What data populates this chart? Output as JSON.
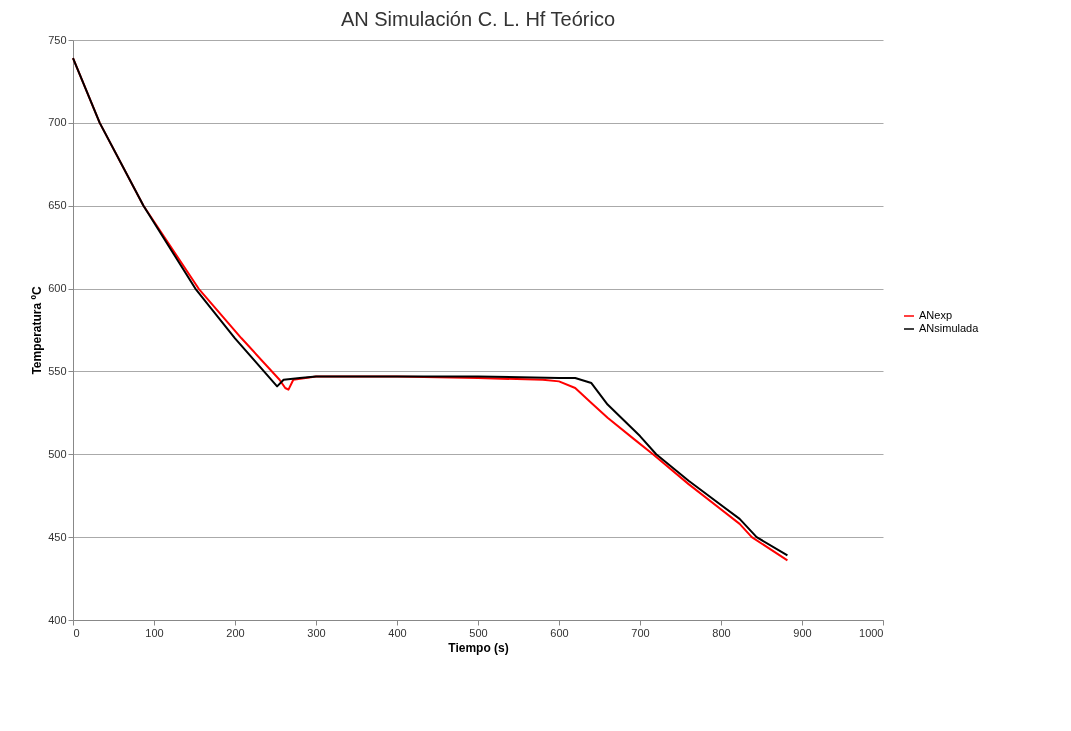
{
  "chart_data": {
    "type": "line",
    "title": "AN Simulación C. L. Hf Teórico",
    "xlabel": "Tiempo (s)",
    "ylabel": "Temperatura ºC",
    "xlim": [
      0,
      1000
    ],
    "xticks": [
      0,
      100,
      200,
      300,
      400,
      500,
      600,
      700,
      800,
      900,
      1000
    ],
    "ylim": [
      400,
      750
    ],
    "yticks": [
      400,
      450,
      500,
      550,
      600,
      650,
      700,
      750
    ],
    "grid": "y",
    "legend": "right",
    "marker": "none",
    "line_style": "solid",
    "series": [
      {
        "name": "ANexp",
        "color": "#ff0000",
        "x": [
          0,
          33,
          87,
          155,
          208,
          255,
          262,
          266,
          272,
          300,
          400,
          500,
          580,
          600,
          620,
          640,
          660,
          693,
          716,
          760,
          823,
          838,
          882
        ],
        "values": [
          739,
          700,
          650,
          600,
          570,
          545,
          540,
          539,
          545,
          547,
          547,
          546,
          545,
          544,
          540,
          531,
          522,
          509,
          500,
          482,
          458,
          450,
          436
        ]
      },
      {
        "name": "ANsimulada",
        "color": "#000000",
        "x": [
          0,
          33,
          87,
          151,
          200,
          252,
          260,
          280,
          300,
          400,
          500,
          600,
          620,
          640,
          660,
          700,
          720,
          760,
          823,
          844,
          882
        ],
        "values": [
          739,
          700,
          650,
          600,
          570,
          541,
          545,
          546,
          547,
          547,
          547,
          546,
          546,
          543,
          530,
          511,
          500,
          484,
          461,
          450,
          439
        ]
      }
    ]
  }
}
